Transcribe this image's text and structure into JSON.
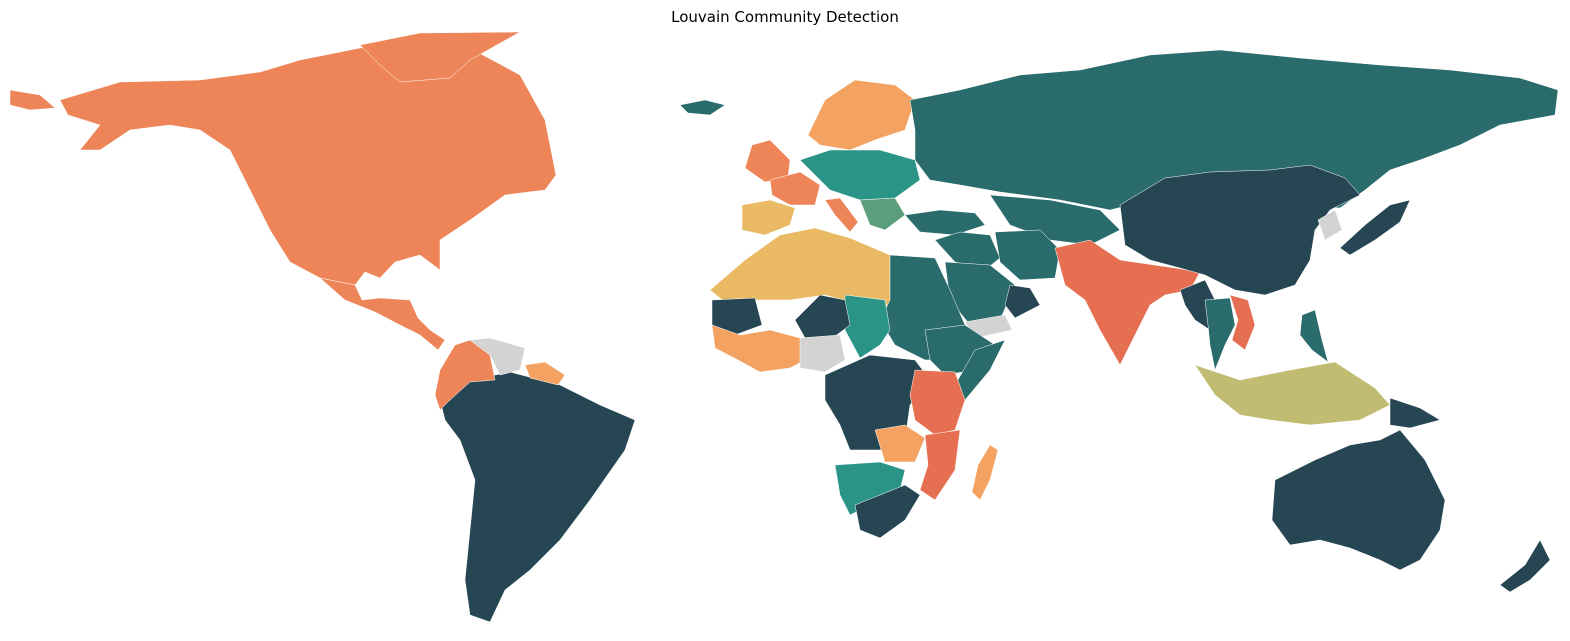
{
  "title": "Louvain Community Detection",
  "colors": {
    "background": "#ffffff",
    "no_data": "#d3d3d3",
    "community_navy": "#264653",
    "community_teal_dark": "#2a6b6b",
    "community_teal": "#2a9486",
    "community_sage": "#5a9e7e",
    "community_orange": "#ee8559",
    "community_orange_red": "#e76f51",
    "community_light_orange": "#f4a261",
    "community_yellow": "#e9b963",
    "community_olive": "#c2bb72"
  },
  "map": {
    "projection": "equirectangular",
    "regions": [
      {
        "name": "North America",
        "community": "community_orange"
      },
      {
        "name": "Central America",
        "community": "community_orange"
      },
      {
        "name": "Greenland",
        "community": "community_orange"
      },
      {
        "name": "Alaska",
        "community": "community_orange"
      },
      {
        "name": "South America",
        "community": "community_navy"
      },
      {
        "name": "Colombia",
        "community": "community_orange"
      },
      {
        "name": "Venezuela",
        "community": "no_data"
      },
      {
        "name": "Guianas",
        "community": "community_light_orange"
      },
      {
        "name": "Scandinavia",
        "community": "community_light_orange"
      },
      {
        "name": "United Kingdom",
        "community": "community_orange"
      },
      {
        "name": "France",
        "community": "community_orange"
      },
      {
        "name": "Iberia",
        "community": "community_yellow"
      },
      {
        "name": "Central Europe",
        "community": "community_teal"
      },
      {
        "name": "Balkans",
        "community": "community_sage"
      },
      {
        "name": "Italy",
        "community": "community_orange"
      },
      {
        "name": "Russia",
        "community": "community_teal_dark"
      },
      {
        "name": "Turkey",
        "community": "community_teal_dark"
      },
      {
        "name": "Iceland",
        "community": "community_teal_dark"
      },
      {
        "name": "Middle East",
        "community": "community_teal_dark"
      },
      {
        "name": "Iran",
        "community": "community_teal_dark"
      },
      {
        "name": "Saudi Arabia",
        "community": "community_teal_dark"
      },
      {
        "name": "Oman",
        "community": "community_navy"
      },
      {
        "name": "Yemen",
        "community": "no_data"
      },
      {
        "name": "Central Asia",
        "community": "community_teal_dark"
      },
      {
        "name": "India",
        "community": "community_orange_red"
      },
      {
        "name": "China",
        "community": "community_navy"
      },
      {
        "name": "Japan",
        "community": "community_navy"
      },
      {
        "name": "Korea",
        "community": "no_data"
      },
      {
        "name": "Myanmar",
        "community": "community_navy"
      },
      {
        "name": "Thailand",
        "community": "community_teal_dark"
      },
      {
        "name": "Vietnam",
        "community": "community_orange_red"
      },
      {
        "name": "Philippines",
        "community": "community_teal_dark"
      },
      {
        "name": "Indonesia",
        "community": "community_olive"
      },
      {
        "name": "Papua New Guinea",
        "community": "community_navy"
      },
      {
        "name": "Australia",
        "community": "community_navy"
      },
      {
        "name": "New Zealand",
        "community": "community_navy"
      },
      {
        "name": "North Africa",
        "community": "community_yellow"
      },
      {
        "name": "Egypt & Sudan",
        "community": "community_teal_dark"
      },
      {
        "name": "Niger",
        "community": "community_teal"
      },
      {
        "name": "Mali",
        "community": "community_navy"
      },
      {
        "name": "West Africa",
        "community": "community_light_orange"
      },
      {
        "name": "Nigeria",
        "community": "no_data"
      },
      {
        "name": "Chad",
        "community": "community_navy"
      },
      {
        "name": "Ethiopia",
        "community": "community_teal_dark"
      },
      {
        "name": "Somalia",
        "community": "community_teal_dark"
      },
      {
        "name": "East Africa",
        "community": "community_orange_red"
      },
      {
        "name": "Central Africa",
        "community": "community_navy"
      },
      {
        "name": "Zambia",
        "community": "community_light_orange"
      },
      {
        "name": "Mozambique",
        "community": "community_orange_red"
      },
      {
        "name": "Namibia & Botswana",
        "community": "community_teal"
      },
      {
        "name": "South Africa",
        "community": "community_navy"
      },
      {
        "name": "Madagascar",
        "community": "community_light_orange"
      }
    ]
  }
}
